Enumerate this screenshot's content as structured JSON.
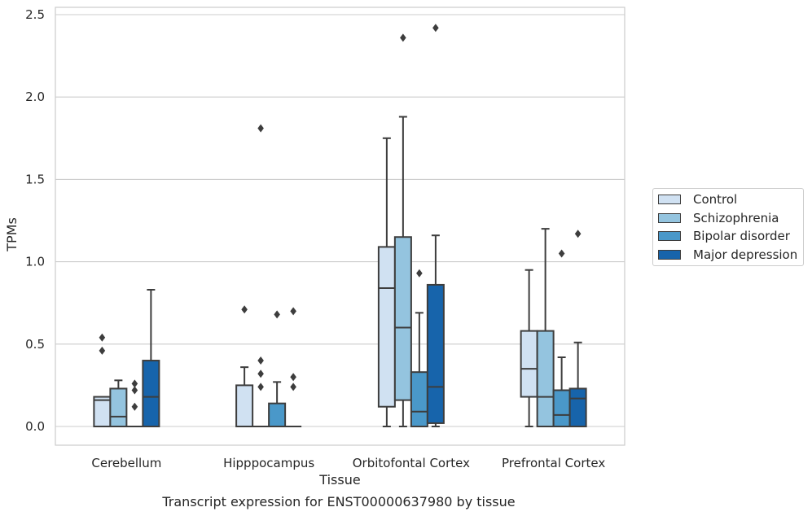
{
  "chart_data": {
    "type": "box",
    "title": "Transcript expression for ENST00000637980 by tissue",
    "xlabel": "Tissue",
    "ylabel": "TPMs",
    "ylim": [
      -0.12,
      2.55
    ],
    "yticks": [
      0.0,
      0.5,
      1.0,
      1.5,
      2.0,
      2.5
    ],
    "ytick_labels": [
      "0.0",
      "0.5",
      "1.0",
      "1.5",
      "2.0",
      "2.5"
    ],
    "grid": true,
    "legend_position": "right",
    "categories": [
      "Cerebellum",
      "Hipppocampus",
      "Orbitofontal Cortex",
      "Prefrontal Cortex"
    ],
    "series": [
      {
        "name": "Control",
        "color": "#d0e1f2",
        "boxes": [
          {
            "q1": 0.0,
            "median": 0.16,
            "q3": 0.18,
            "whisker_low": 0.0,
            "whisker_high": 0.18,
            "outliers": [
              0.46,
              0.54
            ]
          },
          {
            "q1": 0.0,
            "median": 0.0,
            "q3": 0.25,
            "whisker_low": 0.0,
            "whisker_high": 0.36,
            "outliers": [
              0.71
            ]
          },
          {
            "q1": 0.12,
            "median": 0.84,
            "q3": 1.09,
            "whisker_low": 0.0,
            "whisker_high": 1.75,
            "outliers": []
          },
          {
            "q1": 0.18,
            "median": 0.35,
            "q3": 0.58,
            "whisker_low": 0.0,
            "whisker_high": 0.95,
            "outliers": []
          }
        ]
      },
      {
        "name": "Schizophrenia",
        "color": "#94c4df",
        "boxes": [
          {
            "q1": 0.0,
            "median": 0.06,
            "q3": 0.23,
            "whisker_low": 0.0,
            "whisker_high": 0.28,
            "outliers": []
          },
          {
            "q1": 0.0,
            "median": 0.0,
            "q3": 0.0,
            "whisker_low": 0.0,
            "whisker_high": 0.0,
            "outliers": [
              0.24,
              0.32,
              0.4,
              1.81
            ]
          },
          {
            "q1": 0.16,
            "median": 0.6,
            "q3": 1.15,
            "whisker_low": 0.0,
            "whisker_high": 1.88,
            "outliers": [
              2.36
            ]
          },
          {
            "q1": 0.0,
            "median": 0.18,
            "q3": 0.58,
            "whisker_low": 0.0,
            "whisker_high": 1.2,
            "outliers": []
          }
        ]
      },
      {
        "name": "Bipolar disorder",
        "color": "#4a98c9",
        "boxes": [
          {
            "q1": 0.0,
            "median": 0.0,
            "q3": 0.0,
            "whisker_low": 0.0,
            "whisker_high": 0.0,
            "outliers": [
              0.12,
              0.22,
              0.26
            ]
          },
          {
            "q1": 0.0,
            "median": 0.0,
            "q3": 0.14,
            "whisker_low": 0.0,
            "whisker_high": 0.27,
            "outliers": [
              0.68
            ]
          },
          {
            "q1": 0.0,
            "median": 0.09,
            "q3": 0.33,
            "whisker_low": 0.0,
            "whisker_high": 0.69,
            "outliers": [
              0.93
            ]
          },
          {
            "q1": 0.0,
            "median": 0.07,
            "q3": 0.22,
            "whisker_low": 0.0,
            "whisker_high": 0.42,
            "outliers": [
              1.05
            ]
          }
        ]
      },
      {
        "name": "Major depression",
        "color": "#1764ab",
        "boxes": [
          {
            "q1": 0.0,
            "median": 0.18,
            "q3": 0.4,
            "whisker_low": 0.0,
            "whisker_high": 0.83,
            "outliers": []
          },
          {
            "q1": 0.0,
            "median": 0.0,
            "q3": 0.0,
            "whisker_low": 0.0,
            "whisker_high": 0.0,
            "outliers": [
              0.24,
              0.3,
              0.7
            ]
          },
          {
            "q1": 0.02,
            "median": 0.24,
            "q3": 0.86,
            "whisker_low": 0.0,
            "whisker_high": 1.16,
            "outliers": [
              2.42
            ]
          },
          {
            "q1": 0.0,
            "median": 0.17,
            "q3": 0.23,
            "whisker_low": 0.0,
            "whisker_high": 0.51,
            "outliers": [
              1.17
            ]
          }
        ]
      }
    ]
  }
}
